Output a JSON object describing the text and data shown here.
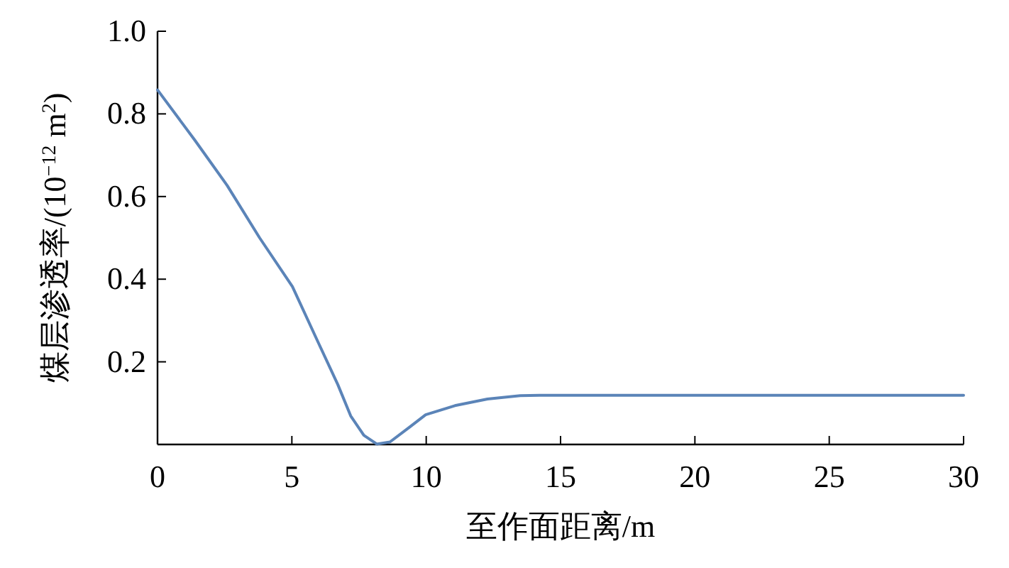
{
  "chart_data": {
    "type": "line",
    "xlabel": "至作面距离/m",
    "ylabel": "煤层渗透率/(10$^{−12}$ m$^{2}$)",
    "x": [
      0,
      1.38,
      2.59,
      3.8,
      5.02,
      5.98,
      6.71,
      7.19,
      7.68,
      8.16,
      8.65,
      9.38,
      9.98,
      11.07,
      12.28,
      13.5,
      14.22,
      30
    ],
    "values": [
      0.858,
      0.737,
      0.627,
      0.5,
      0.382,
      0.247,
      0.145,
      0.069,
      0.022,
      0.001,
      0.006,
      0.042,
      0.072,
      0.094,
      0.11,
      0.118,
      0.119,
      0.119
    ],
    "color": "#5b84b8",
    "xlim": [
      0,
      30
    ],
    "ylim": [
      0,
      1.0
    ],
    "xticks": [
      0,
      5,
      10,
      15,
      20,
      25,
      30
    ],
    "yticks": [
      0.2,
      0.4,
      0.6,
      {
        "value": 0.8,
        "label": "0.8"
      },
      {
        "value": 1.0,
        "label": "1.0"
      }
    ],
    "grid": false
  }
}
